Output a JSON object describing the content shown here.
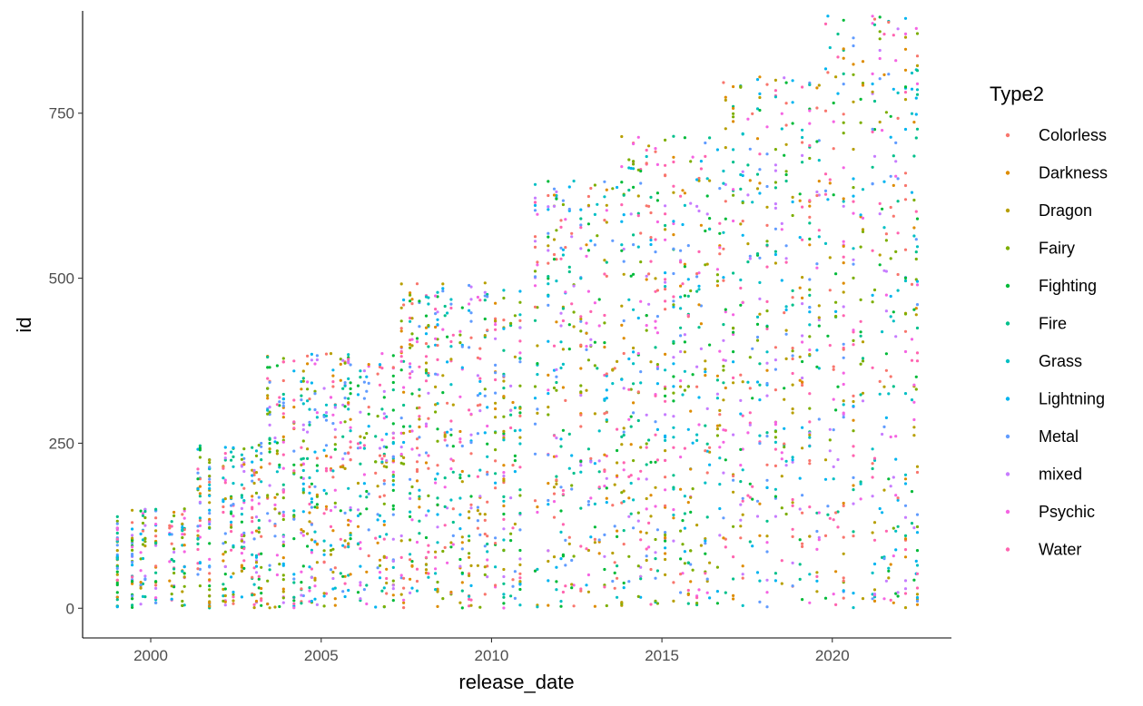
{
  "chart_data": {
    "type": "scatter",
    "xlabel": "release_date",
    "ylabel": "id",
    "x_axis_type": "date",
    "xlim": [
      "1998-01-01",
      "2023-07-01"
    ],
    "ylim": [
      -45,
      905
    ],
    "x_ticks": [
      {
        "value": "2000-01-01",
        "label": "2000"
      },
      {
        "value": "2005-01-01",
        "label": "2005"
      },
      {
        "value": "2010-01-01",
        "label": "2010"
      },
      {
        "value": "2015-01-01",
        "label": "2015"
      },
      {
        "value": "2020-01-01",
        "label": "2020"
      }
    ],
    "y_ticks": [
      {
        "value": 0,
        "label": "0"
      },
      {
        "value": 250,
        "label": "250"
      },
      {
        "value": 500,
        "label": "500"
      },
      {
        "value": 750,
        "label": "750"
      }
    ],
    "grid": false,
    "legend": {
      "title": "Type2",
      "position": "right"
    },
    "series": [
      {
        "name": "Colorless",
        "color": "#F8766D"
      },
      {
        "name": "Darkness",
        "color": "#DE8C00"
      },
      {
        "name": "Dragon",
        "color": "#B79F00"
      },
      {
        "name": "Fairy",
        "color": "#7CAE00"
      },
      {
        "name": "Fighting",
        "color": "#00BA38"
      },
      {
        "name": "Fire",
        "color": "#00C08B"
      },
      {
        "name": "Grass",
        "color": "#00BFC4"
      },
      {
        "name": "Lightning",
        "color": "#00B4F0"
      },
      {
        "name": "Metal",
        "color": "#619CFF"
      },
      {
        "name": "mixed",
        "color": "#C77CFF"
      },
      {
        "name": "Psychic",
        "color": "#F564E3"
      },
      {
        "name": "Water",
        "color": "#FF64B0"
      }
    ],
    "release_groups": [
      {
        "dates": [
          "1999-01-09",
          "1999-06-16",
          "1999-10-10",
          "2000-02-24",
          "2000-08-14",
          "2000-12-16"
        ],
        "max_id": 151
      },
      {
        "dates": [
          "2001-06-01",
          "2001-09-21",
          "2002-02-28",
          "2002-05-24",
          "2002-09-15",
          "2003-01-15",
          "2003-03-18"
        ],
        "max_id": 251
      },
      {
        "dates": [
          "2003-06-18",
          "2003-09-18",
          "2003-11-24",
          "2004-03-15",
          "2004-06-14",
          "2004-08-30",
          "2004-11-08",
          "2005-02-14",
          "2005-05-09",
          "2005-08-22",
          "2005-10-31",
          "2006-02-13",
          "2006-05-03",
          "2006-08-30",
          "2006-11-08",
          "2007-02-14"
        ],
        "max_id": 386
      },
      {
        "dates": [
          "2007-05-23",
          "2007-08-22",
          "2007-11-07",
          "2008-02-13",
          "2008-05-21",
          "2008-08-20",
          "2008-11-05",
          "2009-02-11",
          "2009-05-16",
          "2009-08-19",
          "2009-11-04",
          "2010-02-10",
          "2010-05-12",
          "2010-08-18",
          "2010-11-03"
        ],
        "max_id": 493
      },
      {
        "dates": [
          "2011-04-25",
          "2011-08-31",
          "2011-11-16",
          "2012-02-08",
          "2012-05-09",
          "2012-08-15",
          "2012-11-07",
          "2013-02-06",
          "2013-05-08",
          "2013-08-14"
        ],
        "max_id": 649
      },
      {
        "dates": [
          "2013-11-08",
          "2014-02-05",
          "2014-05-07",
          "2014-08-13",
          "2014-11-05",
          "2015-02-04",
          "2015-05-06",
          "2015-08-12",
          "2015-11-04",
          "2016-02-03",
          "2016-05-02",
          "2016-08-31"
        ],
        "max_id": 721
      },
      {
        "dates": [
          "2016-11-02",
          "2017-02-03",
          "2017-05-05",
          "2017-08-04",
          "2017-11-03",
          "2018-02-02",
          "2018-05-04",
          "2018-08-03",
          "2018-11-02",
          "2019-02-01",
          "2019-05-03",
          "2019-08-02"
        ],
        "max_id": 809
      },
      {
        "dates": [
          "2019-11-15",
          "2020-02-07",
          "2020-05-01",
          "2020-08-14",
          "2020-11-13",
          "2021-03-19",
          "2021-06-18",
          "2021-08-27",
          "2021-11-12",
          "2022-02-25",
          "2022-05-27",
          "2022-07-01"
        ],
        "max_id": 898
      }
    ]
  }
}
